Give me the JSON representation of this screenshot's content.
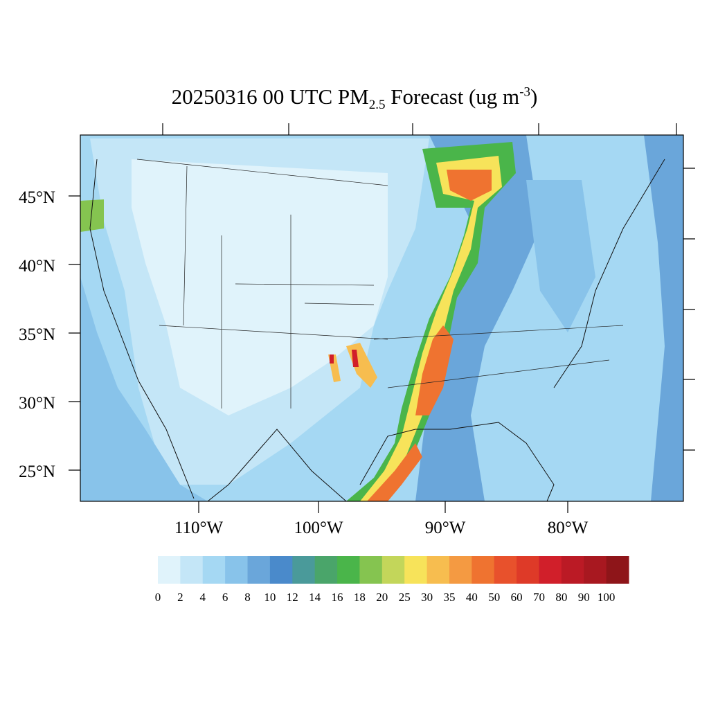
{
  "title": {
    "main": "20250316 00 UTC PM",
    "sub": "2.5",
    "mid": " Forecast (ug m",
    "sup": "-3",
    "end": ")"
  },
  "lat_labels": [
    "45°N",
    "40°N",
    "35°N",
    "30°N",
    "25°N"
  ],
  "lon_labels": [
    "110°W",
    "100°W",
    "90°W",
    "80°W"
  ],
  "colorbar": {
    "labels": [
      0,
      2,
      4,
      6,
      8,
      10,
      12,
      14,
      16,
      18,
      20,
      25,
      30,
      35,
      40,
      50,
      60,
      70,
      80,
      90,
      100
    ],
    "colors": [
      "#e0f3fb",
      "#c4e6f7",
      "#a5d8f3",
      "#88c3ea",
      "#6aa6da",
      "#4a8acb",
      "#4a9a9a",
      "#4aa56a",
      "#4ab54a",
      "#85c450",
      "#c3d65a",
      "#f7e35a",
      "#f7bd4f",
      "#f49a42",
      "#ef7330",
      "#e8512c",
      "#de3a28",
      "#d11f2a",
      "#bb1a25",
      "#a81820",
      "#8e1519"
    ]
  }
}
